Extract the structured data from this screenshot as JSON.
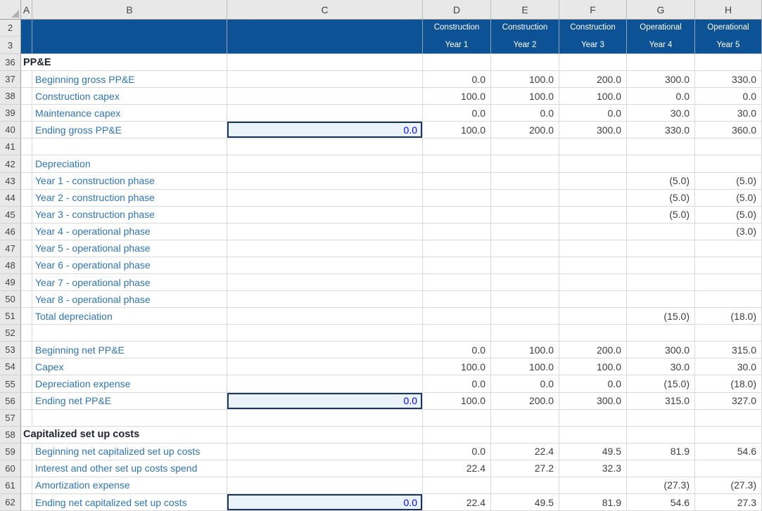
{
  "sheet": {
    "column_letters": [
      "A",
      "B",
      "C",
      "D",
      "E",
      "F",
      "G",
      "H"
    ],
    "band_row_numbers": [
      "2",
      "3"
    ],
    "year_headers": [
      {
        "col": "D",
        "phase": "Construction",
        "year": "Year 1"
      },
      {
        "col": "E",
        "phase": "Construction",
        "year": "Year 2"
      },
      {
        "col": "F",
        "phase": "Construction",
        "year": "Year 3"
      },
      {
        "col": "G",
        "phase": "Operational",
        "year": "Year 4"
      },
      {
        "col": "H",
        "phase": "Operational",
        "year": "Year 5"
      }
    ],
    "rows": [
      {
        "num": "36",
        "type": "section",
        "label": "PP&E",
        "c": null,
        "values": [
          "",
          "",
          "",
          "",
          ""
        ]
      },
      {
        "num": "37",
        "type": "label",
        "label": "Beginning gross PP&E",
        "c": null,
        "values": [
          "0.0",
          "100.0",
          "200.0",
          "300.0",
          "330.0"
        ]
      },
      {
        "num": "38",
        "type": "label",
        "label": "Construction capex",
        "c": null,
        "values": [
          "100.0",
          "100.0",
          "100.0",
          "0.0",
          "0.0"
        ]
      },
      {
        "num": "39",
        "type": "label",
        "label": "Maintenance capex",
        "c": null,
        "values": [
          "0.0",
          "0.0",
          "0.0",
          "30.0",
          "30.0"
        ]
      },
      {
        "num": "40",
        "type": "label",
        "label": "Ending gross PP&E",
        "c": "0.0",
        "values": [
          "100.0",
          "200.0",
          "300.0",
          "330.0",
          "360.0"
        ]
      },
      {
        "num": "41",
        "type": "blank",
        "label": "",
        "c": null,
        "values": [
          "",
          "",
          "",
          "",
          ""
        ]
      },
      {
        "num": "42",
        "type": "label",
        "label": "Depreciation",
        "c": null,
        "values": [
          "",
          "",
          "",
          "",
          ""
        ]
      },
      {
        "num": "43",
        "type": "label",
        "label": "Year 1 - construction phase",
        "c": null,
        "values": [
          "",
          "",
          "",
          "(5.0)",
          "(5.0)"
        ]
      },
      {
        "num": "44",
        "type": "label",
        "label": "Year 2 - construction phase",
        "c": null,
        "values": [
          "",
          "",
          "",
          "(5.0)",
          "(5.0)"
        ]
      },
      {
        "num": "45",
        "type": "label",
        "label": "Year 3 - construction phase",
        "c": null,
        "values": [
          "",
          "",
          "",
          "(5.0)",
          "(5.0)"
        ]
      },
      {
        "num": "46",
        "type": "label",
        "label": "Year 4 - operational phase",
        "c": null,
        "values": [
          "",
          "",
          "",
          "",
          "(3.0)"
        ]
      },
      {
        "num": "47",
        "type": "label",
        "label": "Year 5 - operational phase",
        "c": null,
        "values": [
          "",
          "",
          "",
          "",
          ""
        ]
      },
      {
        "num": "48",
        "type": "label",
        "label": "Year 6 - operational phase",
        "c": null,
        "values": [
          "",
          "",
          "",
          "",
          ""
        ]
      },
      {
        "num": "49",
        "type": "label",
        "label": "Year 7 - operational phase",
        "c": null,
        "values": [
          "",
          "",
          "",
          "",
          ""
        ]
      },
      {
        "num": "50",
        "type": "label",
        "label": "Year 8 - operational phase",
        "c": null,
        "values": [
          "",
          "",
          "",
          "",
          ""
        ]
      },
      {
        "num": "51",
        "type": "label",
        "label": "Total depreciation",
        "c": null,
        "values": [
          "",
          "",
          "",
          "(15.0)",
          "(18.0)"
        ]
      },
      {
        "num": "52",
        "type": "blank",
        "label": "",
        "c": null,
        "values": [
          "",
          "",
          "",
          "",
          ""
        ]
      },
      {
        "num": "53",
        "type": "label",
        "label": "Beginning net PP&E",
        "c": null,
        "values": [
          "0.0",
          "100.0",
          "200.0",
          "300.0",
          "315.0"
        ]
      },
      {
        "num": "54",
        "type": "label",
        "label": "Capex",
        "c": null,
        "values": [
          "100.0",
          "100.0",
          "100.0",
          "30.0",
          "30.0"
        ]
      },
      {
        "num": "55",
        "type": "label",
        "label": "Depreciation expense",
        "c": null,
        "values": [
          "0.0",
          "0.0",
          "0.0",
          "(15.0)",
          "(18.0)"
        ]
      },
      {
        "num": "56",
        "type": "label",
        "label": "Ending net PP&E",
        "c": "0.0",
        "values": [
          "100.0",
          "200.0",
          "300.0",
          "315.0",
          "327.0"
        ]
      },
      {
        "num": "57",
        "type": "blank",
        "label": "",
        "c": null,
        "values": [
          "",
          "",
          "",
          "",
          ""
        ]
      },
      {
        "num": "58",
        "type": "section",
        "label": "Capitalized set up costs",
        "c": null,
        "values": [
          "",
          "",
          "",
          "",
          ""
        ]
      },
      {
        "num": "59",
        "type": "label",
        "label": "Beginning net capitalized set up costs",
        "c": null,
        "values": [
          "0.0",
          "22.4",
          "49.5",
          "81.9",
          "54.6"
        ]
      },
      {
        "num": "60",
        "type": "label",
        "label": "Interest and other set up costs spend",
        "c": null,
        "values": [
          "22.4",
          "27.2",
          "32.3",
          "",
          ""
        ]
      },
      {
        "num": "61",
        "type": "label",
        "label": "Amortization expense",
        "c": null,
        "values": [
          "",
          "",
          "",
          "(27.3)",
          "(27.3)"
        ]
      },
      {
        "num": "62",
        "type": "label",
        "label": "Ending net capitalized set up costs",
        "c": "0.0",
        "values": [
          "22.4",
          "49.5",
          "81.9",
          "54.6",
          "27.3"
        ]
      }
    ]
  },
  "colors": {
    "header_band_bg": "#0D5295",
    "header_band_text": "#FFFFFF",
    "label_text": "#2E75B6",
    "section_text": "#1F2430",
    "number_text": "#3D3D3D",
    "input_value_text": "#0000FF",
    "input_cell_bg": "#EAF2FA",
    "input_cell_border": "#17375E",
    "gridline": "#D9D9D9",
    "header_strip_bg": "#E8E8E8",
    "header_strip_text": "#444444"
  }
}
